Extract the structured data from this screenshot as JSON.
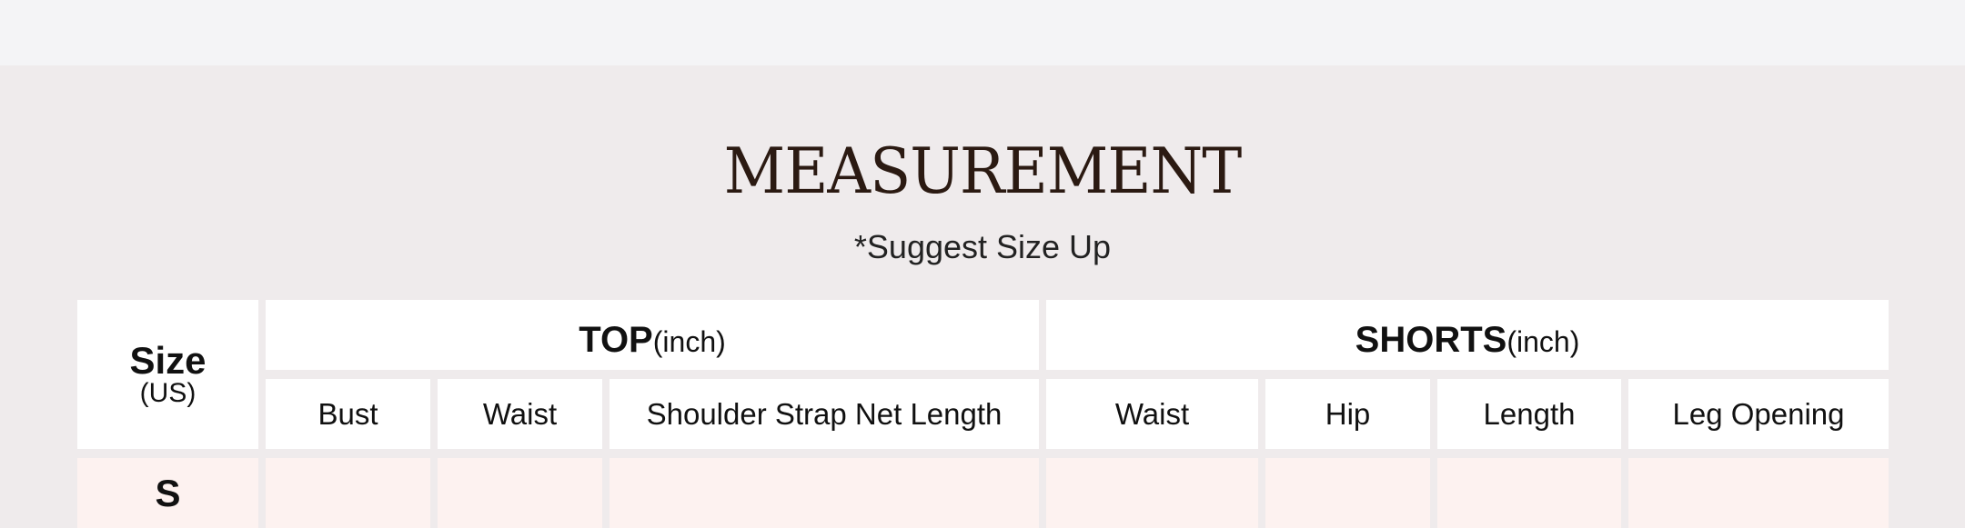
{
  "title": "MEASUREMENT",
  "subtitle": "*Suggest Size Up",
  "table": {
    "size_header": "Size",
    "size_unit": "(US)",
    "top": {
      "label": "TOP",
      "unit": "(inch)",
      "columns": [
        "Bust",
        "Waist",
        "Shoulder Strap Net Length"
      ]
    },
    "shorts": {
      "label": "SHORTS",
      "unit": "(inch)",
      "columns": [
        "Waist",
        "Hip",
        "Length",
        "Leg Opening"
      ]
    },
    "rows": [
      {
        "size": "S"
      }
    ]
  },
  "colors": {
    "title": "#2b1a12",
    "background": "#efebec",
    "row_pink": "#fdf2f0"
  }
}
